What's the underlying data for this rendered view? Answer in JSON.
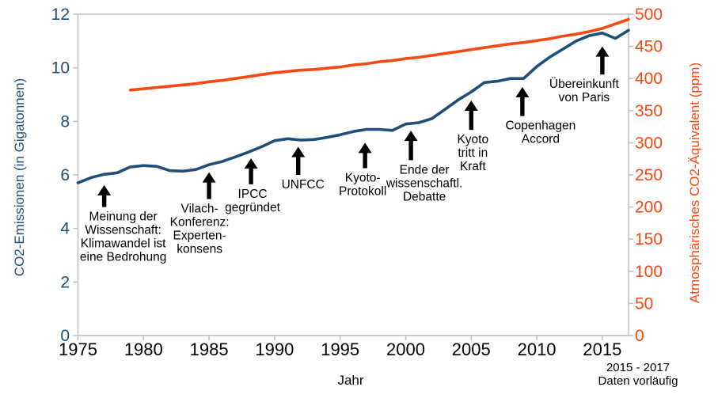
{
  "chart_data": {
    "type": "line",
    "title": "",
    "xlabel": "Jahr",
    "ylabel_left": "CO2-Emissionen (in Gigatonnen)",
    "ylabel_right": "Atmosphärisches CO2-Äquivalent (ppm)",
    "footnote_line1": "2015 - 2017",
    "footnote_line2": "Daten vorläufig",
    "x_range": [
      1975,
      2017
    ],
    "x_ticks": [
      1975,
      1980,
      1985,
      1990,
      1995,
      2000,
      2005,
      2010,
      2015
    ],
    "left_axis": {
      "range": [
        0,
        12
      ],
      "ticks": [
        0,
        2,
        4,
        6,
        8,
        10,
        12
      ],
      "color": "#1F4E79"
    },
    "right_axis": {
      "range": [
        0,
        500
      ],
      "ticks": [
        0,
        50,
        100,
        150,
        200,
        250,
        300,
        350,
        400,
        450,
        500
      ],
      "color": "#FB4713"
    },
    "frame_color": "#BFBFBF",
    "annotation_color": "#000000",
    "series": [
      {
        "name": "CO2-Emissionen",
        "axis": "left",
        "color": "#1F4E79",
        "start_year": 1975,
        "values": [
          5.7,
          5.9,
          6.02,
          6.08,
          6.3,
          6.35,
          6.32,
          6.16,
          6.14,
          6.2,
          6.38,
          6.5,
          6.67,
          6.85,
          7.05,
          7.28,
          7.35,
          7.3,
          7.32,
          7.4,
          7.5,
          7.62,
          7.7,
          7.7,
          7.66,
          7.9,
          7.95,
          8.1,
          8.45,
          8.8,
          9.1,
          9.45,
          9.5,
          9.6,
          9.6,
          10.05,
          10.4,
          10.7,
          11.0,
          11.2,
          11.3,
          11.1,
          11.4
        ]
      },
      {
        "name": "Atmosphärisches CO2-Äquivalent",
        "axis": "right",
        "color": "#FB4713",
        "start_year": 1979,
        "values": [
          382,
          384,
          386,
          388,
          390,
          392,
          395,
          397,
          400,
          403,
          406,
          409,
          411,
          413,
          414,
          416,
          418,
          421,
          423,
          426,
          428,
          431,
          433,
          436,
          439,
          442,
          445,
          448,
          451,
          454,
          456,
          459,
          462,
          466,
          469,
          473,
          478,
          485,
          492
        ]
      }
    ],
    "annotations": [
      {
        "year": 1977.0,
        "tip_value": 5.62,
        "tail_value": 4.8,
        "label_dx": 24,
        "label_lines": [
          "Meinung der",
          "Wissenschaft:",
          "Klimawandel ist",
          "eine Bedrohung"
        ]
      },
      {
        "year": 1985.0,
        "tip_value": 6.1,
        "tail_value": 5.1,
        "label_dx": -12,
        "label_lines": [
          "Vilach-",
          "Konferenz:",
          "Experten-",
          "konsens"
        ]
      },
      {
        "year": 1988.2,
        "tip_value": 6.62,
        "tail_value": 5.65,
        "label_dx": 2,
        "label_lines": [
          "IPCC",
          "gegründet"
        ]
      },
      {
        "year": 1991.8,
        "tip_value": 7.05,
        "tail_value": 6.0,
        "label_dx": 6,
        "label_lines": [
          "UNFCC"
        ]
      },
      {
        "year": 1996.9,
        "tip_value": 7.2,
        "tail_value": 6.25,
        "label_dx": -3,
        "label_lines": [
          "Kyoto-",
          "Protokoll"
        ]
      },
      {
        "year": 2000.4,
        "tip_value": 7.65,
        "tail_value": 6.55,
        "label_dx": 17,
        "label_lines": [
          "Ende der",
          "wissenschaftl.",
          "Debatte"
        ]
      },
      {
        "year": 2005.0,
        "tip_value": 8.78,
        "tail_value": 7.68,
        "label_dx": 2,
        "label_lines": [
          "Kyoto",
          "tritt in",
          "Kraft"
        ]
      },
      {
        "year": 2008.9,
        "tip_value": 9.28,
        "tail_value": 8.2,
        "label_dx": 23,
        "label_lines": [
          "Copenhagen",
          "Accord"
        ]
      },
      {
        "year": 2015.0,
        "tip_value": 10.8,
        "tail_value": 9.75,
        "label_dx": -23,
        "label_lines": [
          "Übereinkunft",
          "von Paris"
        ]
      }
    ]
  }
}
